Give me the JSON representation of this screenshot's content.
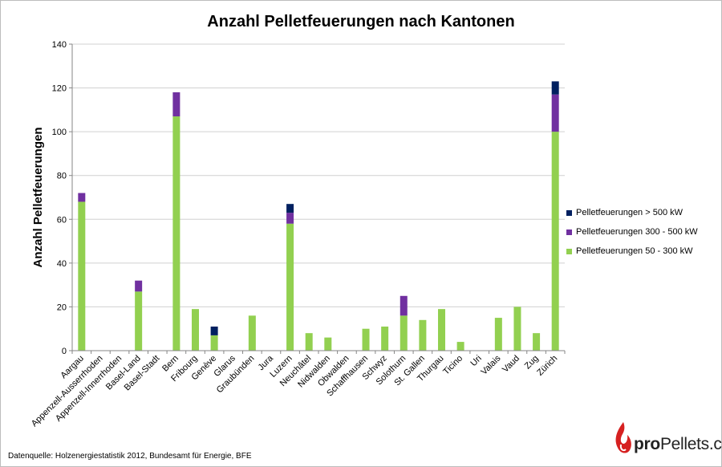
{
  "chart_data": {
    "type": "bar",
    "stacked": true,
    "title": "Anzahl Pelletfeuerungen nach Kantonen",
    "xlabel": "",
    "ylabel": "Anzahl Pelletfeuerungen",
    "ylim": [
      0,
      140
    ],
    "yticks": [
      0,
      20,
      40,
      60,
      80,
      100,
      120,
      140
    ],
    "grid": true,
    "legend_position": "right",
    "categories": [
      "Aargau",
      "Appenzell-Ausserrhoden",
      "Appenzell-Innerrhoden",
      "Basel-Land",
      "Basel-Stadt",
      "Bern",
      "Fribourg",
      "Genève",
      "Glarus",
      "Graubünden",
      "Jura",
      "Luzern",
      "Neuchâtel",
      "Nidwalden",
      "Obwalden",
      "Schaffhausen",
      "Schwyz",
      "Solothurn",
      "St. Gallen",
      "Thurgau",
      "Ticino",
      "Uri",
      "Valais",
      "Vaud",
      "Zug",
      "Zürich"
    ],
    "series": [
      {
        "name": "Pelletfeuerungen 50 - 300 kW",
        "color": "#92d050",
        "values": [
          68,
          0,
          0,
          27,
          0,
          107,
          19,
          7,
          0,
          16,
          0,
          58,
          8,
          6,
          0,
          10,
          11,
          16,
          14,
          19,
          4,
          0,
          15,
          20,
          8,
          100
        ]
      },
      {
        "name": "Pelletfeuerungen 300 - 500 kW",
        "color": "#7030a0",
        "values": [
          4,
          0,
          0,
          5,
          0,
          11,
          0,
          0,
          0,
          0,
          0,
          5,
          0,
          0,
          0,
          0,
          0,
          9,
          0,
          0,
          0,
          0,
          0,
          0,
          0,
          17
        ]
      },
      {
        "name": "Pelletfeuerungen > 500 kW",
        "color": "#002060",
        "values": [
          0,
          0,
          0,
          0,
          0,
          0,
          0,
          4,
          0,
          0,
          0,
          4,
          0,
          0,
          0,
          0,
          0,
          0,
          0,
          0,
          0,
          0,
          0,
          0,
          0,
          6
        ]
      }
    ]
  },
  "footer": {
    "source": "Datenquelle: Holzenergiestatistik 2012, Bundesamt für Energie, BFE"
  },
  "brand": {
    "prefix": "pro",
    "suffix": "Pellets.ch",
    "flame_color": "#d62020"
  }
}
